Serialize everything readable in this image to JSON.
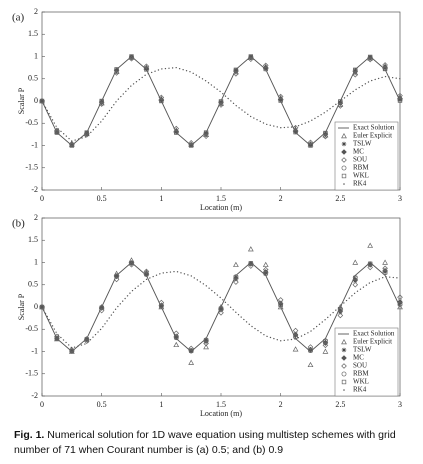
{
  "chart_data": [
    {
      "type": "line",
      "panel_label": "(a)",
      "xlabel": "Location (m)",
      "ylabel": "Scalar P",
      "xlim": [
        0,
        3
      ],
      "ylim": [
        -2,
        2
      ],
      "xticks": [
        0,
        0.5,
        1,
        1.5,
        2,
        2.5,
        3
      ],
      "yticks": [
        -2,
        -1.5,
        -1,
        -0.5,
        0,
        0.5,
        1,
        1.5,
        2
      ],
      "x": [
        0,
        0.125,
        0.25,
        0.375,
        0.5,
        0.625,
        0.75,
        0.875,
        1,
        1.125,
        1.25,
        1.375,
        1.5,
        1.625,
        1.75,
        1.875,
        2,
        2.125,
        2.25,
        2.375,
        2.5,
        2.625,
        2.75,
        2.875,
        3
      ],
      "series": [
        {
          "name": "Exact Solution",
          "marker": "none",
          "style": "solid",
          "color": "#555555",
          "values": [
            0,
            -0.71,
            -1,
            -0.71,
            0,
            0.71,
            1,
            0.71,
            0,
            -0.71,
            -1,
            -0.71,
            0,
            0.71,
            1,
            0.71,
            0,
            -0.71,
            -1,
            -0.71,
            0,
            0.71,
            1,
            0.71,
            0
          ]
        },
        {
          "name": "Euler Explicit",
          "marker": "triangle",
          "style": "none",
          "color": "#666666",
          "values": [
            0,
            -0.68,
            -0.98,
            -0.74,
            -0.05,
            0.66,
            0.98,
            0.75,
            0.05,
            -0.66,
            -0.98,
            -0.76,
            -0.06,
            0.65,
            0.97,
            0.77,
            0.07,
            -0.64,
            -0.97,
            -0.77,
            -0.08,
            0.63,
            0.96,
            0.78,
            0.09
          ]
        },
        {
          "name": "TSLW",
          "marker": "star",
          "style": "none",
          "color": "#444444",
          "values": [
            0,
            -0.7,
            -0.99,
            -0.72,
            -0.02,
            0.69,
            0.99,
            0.73,
            0.02,
            -0.69,
            -0.99,
            -0.73,
            -0.03,
            0.68,
            0.99,
            0.73,
            0.03,
            -0.68,
            -0.98,
            -0.74,
            -0.03,
            0.68,
            0.98,
            0.74,
            0.04
          ]
        },
        {
          "name": "MC",
          "marker": "diamond-filled",
          "style": "none",
          "color": "#555555",
          "values": [
            0,
            -0.69,
            -0.98,
            -0.73,
            -0.03,
            0.68,
            0.98,
            0.74,
            0.03,
            -0.68,
            -0.98,
            -0.74,
            -0.04,
            0.67,
            0.98,
            0.75,
            0.04,
            -0.67,
            -0.97,
            -0.75,
            -0.05,
            0.66,
            0.97,
            0.76,
            0.05
          ]
        },
        {
          "name": "SOU",
          "marker": "diamond",
          "style": "none",
          "color": "#666666",
          "values": [
            0,
            -0.66,
            -0.96,
            -0.76,
            -0.07,
            0.63,
            0.95,
            0.78,
            0.08,
            -0.62,
            -0.94,
            -0.79,
            -0.09,
            0.61,
            0.94,
            0.8,
            0.1,
            -0.6,
            -0.93,
            -0.8,
            -0.11,
            0.59,
            0.93,
            0.81,
            0.12
          ]
        },
        {
          "name": "RBM",
          "marker": "circle",
          "style": "none",
          "color": "#666666",
          "values": [
            0,
            -0.7,
            -0.99,
            -0.72,
            -0.01,
            0.7,
            0.99,
            0.72,
            0.01,
            -0.7,
            -0.99,
            -0.72,
            -0.02,
            0.69,
            0.99,
            0.72,
            0.02,
            -0.69,
            -0.99,
            -0.73,
            -0.02,
            0.69,
            0.98,
            0.73,
            0.02
          ]
        },
        {
          "name": "WKL",
          "marker": "square",
          "style": "none",
          "color": "#666666",
          "values": [
            0,
            -0.71,
            -1,
            -0.71,
            0,
            0.71,
            1,
            0.71,
            0,
            -0.71,
            -1,
            -0.71,
            -0.01,
            0.7,
            1,
            0.72,
            0.01,
            -0.7,
            -1,
            -0.72,
            -0.01,
            0.7,
            0.99,
            0.72,
            0.01
          ]
        },
        {
          "name": "RK4",
          "marker": "dot",
          "style": "dotted",
          "color": "#555555",
          "values": [
            0,
            -0.6,
            -0.9,
            -0.8,
            -0.45,
            0,
            0.35,
            0.6,
            0.72,
            0.75,
            0.65,
            0.45,
            0.2,
            -0.1,
            -0.35,
            -0.52,
            -0.6,
            -0.58,
            -0.45,
            -0.25,
            0,
            0.25,
            0.45,
            0.55,
            0.5
          ]
        }
      ]
    },
    {
      "type": "line",
      "panel_label": "(b)",
      "xlabel": "Location (m)",
      "ylabel": "Scalar P",
      "xlim": [
        0,
        3
      ],
      "ylim": [
        -2,
        2
      ],
      "xticks": [
        0,
        0.5,
        1,
        1.5,
        2,
        2.5,
        3
      ],
      "yticks": [
        -2,
        -1.5,
        -1,
        -0.5,
        0,
        0.5,
        1,
        1.5,
        2
      ],
      "x": [
        0,
        0.125,
        0.25,
        0.375,
        0.5,
        0.625,
        0.75,
        0.875,
        1,
        1.125,
        1.25,
        1.375,
        1.5,
        1.625,
        1.75,
        1.875,
        2,
        2.125,
        2.25,
        2.375,
        2.5,
        2.625,
        2.75,
        2.875,
        3
      ],
      "series": [
        {
          "name": "Exact Solution",
          "marker": "none",
          "style": "solid",
          "color": "#555555",
          "values": [
            0,
            -0.71,
            -1,
            -0.71,
            0,
            0.71,
            1,
            0.71,
            0,
            -0.71,
            -1,
            -0.71,
            0,
            0.71,
            1,
            0.71,
            0,
            -0.71,
            -1,
            -0.71,
            0,
            0.71,
            1,
            0.71,
            0
          ]
        },
        {
          "name": "Euler Explicit",
          "marker": "triangle",
          "style": "none",
          "color": "#666666",
          "values": [
            0,
            -0.72,
            -1,
            -0.72,
            0,
            0.75,
            1.05,
            0.78,
            0,
            -0.85,
            -1.25,
            -0.9,
            0,
            0.95,
            1.3,
            0.95,
            0,
            -0.95,
            -1.3,
            -1,
            0,
            1,
            1.38,
            1,
            0
          ]
        },
        {
          "name": "TSLW",
          "marker": "star",
          "style": "none",
          "color": "#444444",
          "values": [
            0,
            -0.7,
            -0.98,
            -0.74,
            -0.03,
            0.68,
            0.98,
            0.76,
            0.05,
            -0.65,
            -0.97,
            -0.78,
            -0.07,
            0.63,
            0.96,
            0.8,
            0.09,
            -0.61,
            -0.95,
            -0.82,
            -0.11,
            0.59,
            0.94,
            0.83,
            0.13
          ]
        },
        {
          "name": "MC",
          "marker": "diamond-filled",
          "style": "none",
          "color": "#555555",
          "values": [
            0,
            -0.7,
            -0.99,
            -0.73,
            -0.02,
            0.69,
            0.99,
            0.74,
            0.03,
            -0.67,
            -0.98,
            -0.76,
            -0.05,
            0.65,
            0.97,
            0.78,
            0.07,
            -0.63,
            -0.96,
            -0.8,
            -0.09,
            0.61,
            0.95,
            0.81,
            0.1
          ]
        },
        {
          "name": "SOU",
          "marker": "diamond",
          "style": "none",
          "color": "#666666",
          "values": [
            0,
            -0.66,
            -0.96,
            -0.77,
            -0.08,
            0.62,
            0.95,
            0.8,
            0.1,
            -0.59,
            -0.93,
            -0.82,
            -0.13,
            0.56,
            0.92,
            0.84,
            0.16,
            -0.53,
            -0.9,
            -0.86,
            -0.19,
            0.5,
            0.89,
            0.87,
            0.22
          ]
        },
        {
          "name": "RBM",
          "marker": "circle",
          "style": "none",
          "color": "#666666",
          "values": [
            0,
            -0.71,
            -0.99,
            -0.72,
            -0.01,
            0.7,
            0.99,
            0.73,
            0.02,
            -0.69,
            -0.99,
            -0.74,
            -0.03,
            0.68,
            0.98,
            0.75,
            0.04,
            -0.67,
            -0.98,
            -0.76,
            -0.05,
            0.66,
            0.97,
            0.77,
            0.06
          ]
        },
        {
          "name": "WKL",
          "marker": "square",
          "style": "none",
          "color": "#666666",
          "values": [
            0,
            -0.7,
            -0.99,
            -0.73,
            -0.02,
            0.69,
            0.99,
            0.74,
            0.03,
            -0.68,
            -0.98,
            -0.75,
            -0.04,
            0.67,
            0.98,
            0.76,
            0.05,
            -0.66,
            -0.97,
            -0.77,
            -0.06,
            0.65,
            0.97,
            0.78,
            0.07
          ]
        },
        {
          "name": "RK4",
          "marker": "dot",
          "style": "dotted",
          "color": "#555555",
          "values": [
            0,
            -0.6,
            -0.92,
            -0.82,
            -0.48,
            -0.02,
            0.35,
            0.62,
            0.76,
            0.8,
            0.7,
            0.48,
            0.2,
            -0.12,
            -0.42,
            -0.65,
            -0.76,
            -0.72,
            -0.55,
            -0.28,
            0.02,
            0.32,
            0.55,
            0.68,
            0.65
          ]
        }
      ]
    }
  ],
  "caption": {
    "label": "Fig. 1.",
    "text": "Numerical solution for 1D wave equation using multistep schemes with grid number of 71 when Courant number is (a) 0.5; and (b) 0.9"
  }
}
